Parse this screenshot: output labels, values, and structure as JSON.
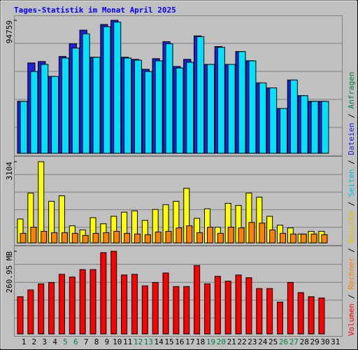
{
  "chart_data": [
    {
      "type": "bar",
      "title": "Tages-Statistik im Monat April 2025",
      "series": [
        {
          "name": "Anfragen",
          "color": "#008040",
          "values": [
            37000,
            64350,
            65360,
            54720,
            68910,
            78030,
            87660,
            68400,
            91710,
            94759,
            68400,
            66880,
            59790,
            67390,
            79550,
            61820,
            66880,
            83600,
            63340,
            76000,
            63340,
            72460,
            65870,
            50160,
            46620,
            31920,
            52190,
            41040,
            36990,
            36990,
            null
          ]
        },
        {
          "name": "Dateien",
          "color": "#2020e0",
          "values": [
            37000,
            64350,
            65360,
            54720,
            68910,
            78030,
            87660,
            68400,
            91710,
            94759,
            68400,
            66880,
            59790,
            67390,
            79550,
            61820,
            66880,
            83600,
            63340,
            76000,
            63340,
            72460,
            65870,
            50160,
            46620,
            31920,
            52190,
            41040,
            36990,
            36990,
            null
          ]
        },
        {
          "name": "Seiten",
          "color": "#00e0ff",
          "values": [
            37000,
            58270,
            63340,
            54720,
            67900,
            74990,
            85120,
            68400,
            90190,
            93500,
            67900,
            66380,
            58270,
            65870,
            78030,
            60800,
            64860,
            83100,
            63340,
            75500,
            63340,
            72460,
            65870,
            50160,
            46620,
            31920,
            52190,
            41040,
            36990,
            36990,
            null
          ]
        }
      ],
      "ylim": [
        0,
        94759
      ],
      "yticks": [
        94759
      ]
    },
    {
      "type": "bar",
      "series": [
        {
          "name": "Besuche",
          "color": "#ffff00",
          "values": [
            913,
            1904,
            3104,
            1591,
            1800,
            652,
            496,
            965,
            730,
            1017,
            1174,
            1226,
            861,
            1278,
            1460,
            1591,
            2086,
            939,
            1304,
            600,
            1513,
            1434,
            1904,
            1747,
            1017,
            678,
            574,
            339,
            443,
            443,
            null
          ]
        },
        {
          "name": "Rechner",
          "color": "#ff8000",
          "values": [
            365,
            600,
            443,
            391,
            391,
            365,
            287,
            365,
            391,
            443,
            365,
            339,
            313,
            417,
            443,
            574,
            652,
            391,
            600,
            365,
            600,
            574,
            782,
            756,
            496,
            365,
            339,
            339,
            339,
            313,
            null
          ]
        }
      ],
      "ylim": [
        0,
        3104
      ],
      "yticks": [
        3104
      ]
    },
    {
      "type": "bar",
      "series": [
        {
          "name": "Volumen",
          "color": "#ff0000",
          "values": [
            117.6,
            139.0,
            158.3,
            162.6,
            188.2,
            179.7,
            203.2,
            203.2,
            256.7,
            260.95,
            186.1,
            188.2,
            151.9,
            162.6,
            192.5,
            149.7,
            149.7,
            216.0,
            158.3,
            181.8,
            166.8,
            186.1,
            177.5,
            143.3,
            143.3,
            100.5,
            162.6,
            130.5,
            117.6,
            113.4,
            null
          ]
        }
      ],
      "ylim": [
        0,
        260.95
      ],
      "yticks": [
        {
          "value": 260.95,
          "label": "260.95 MB"
        }
      ],
      "categories": [
        "1",
        "2",
        "3",
        "4",
        "5",
        "6",
        "7",
        "8",
        "9",
        "10",
        "11",
        "12",
        "13",
        "14",
        "15",
        "16",
        "17",
        "18",
        "19",
        "20",
        "21",
        "22",
        "23",
        "24",
        "25",
        "26",
        "27",
        "28",
        "29",
        "30",
        "31"
      ],
      "category_colors": [
        "#000000",
        "#000000",
        "#000000",
        "#000000",
        "#008040",
        "#008040",
        "#000000",
        "#000000",
        "#000000",
        "#000000",
        "#000000",
        "#008040",
        "#008040",
        "#000000",
        "#000000",
        "#000000",
        "#000000",
        "#000000",
        "#008040",
        "#008040",
        "#000000",
        "#000000",
        "#000000",
        "#000000",
        "#000000",
        "#008040",
        "#008040",
        "#000000",
        "#000000",
        "#000000",
        "#000000"
      ]
    }
  ]
}
